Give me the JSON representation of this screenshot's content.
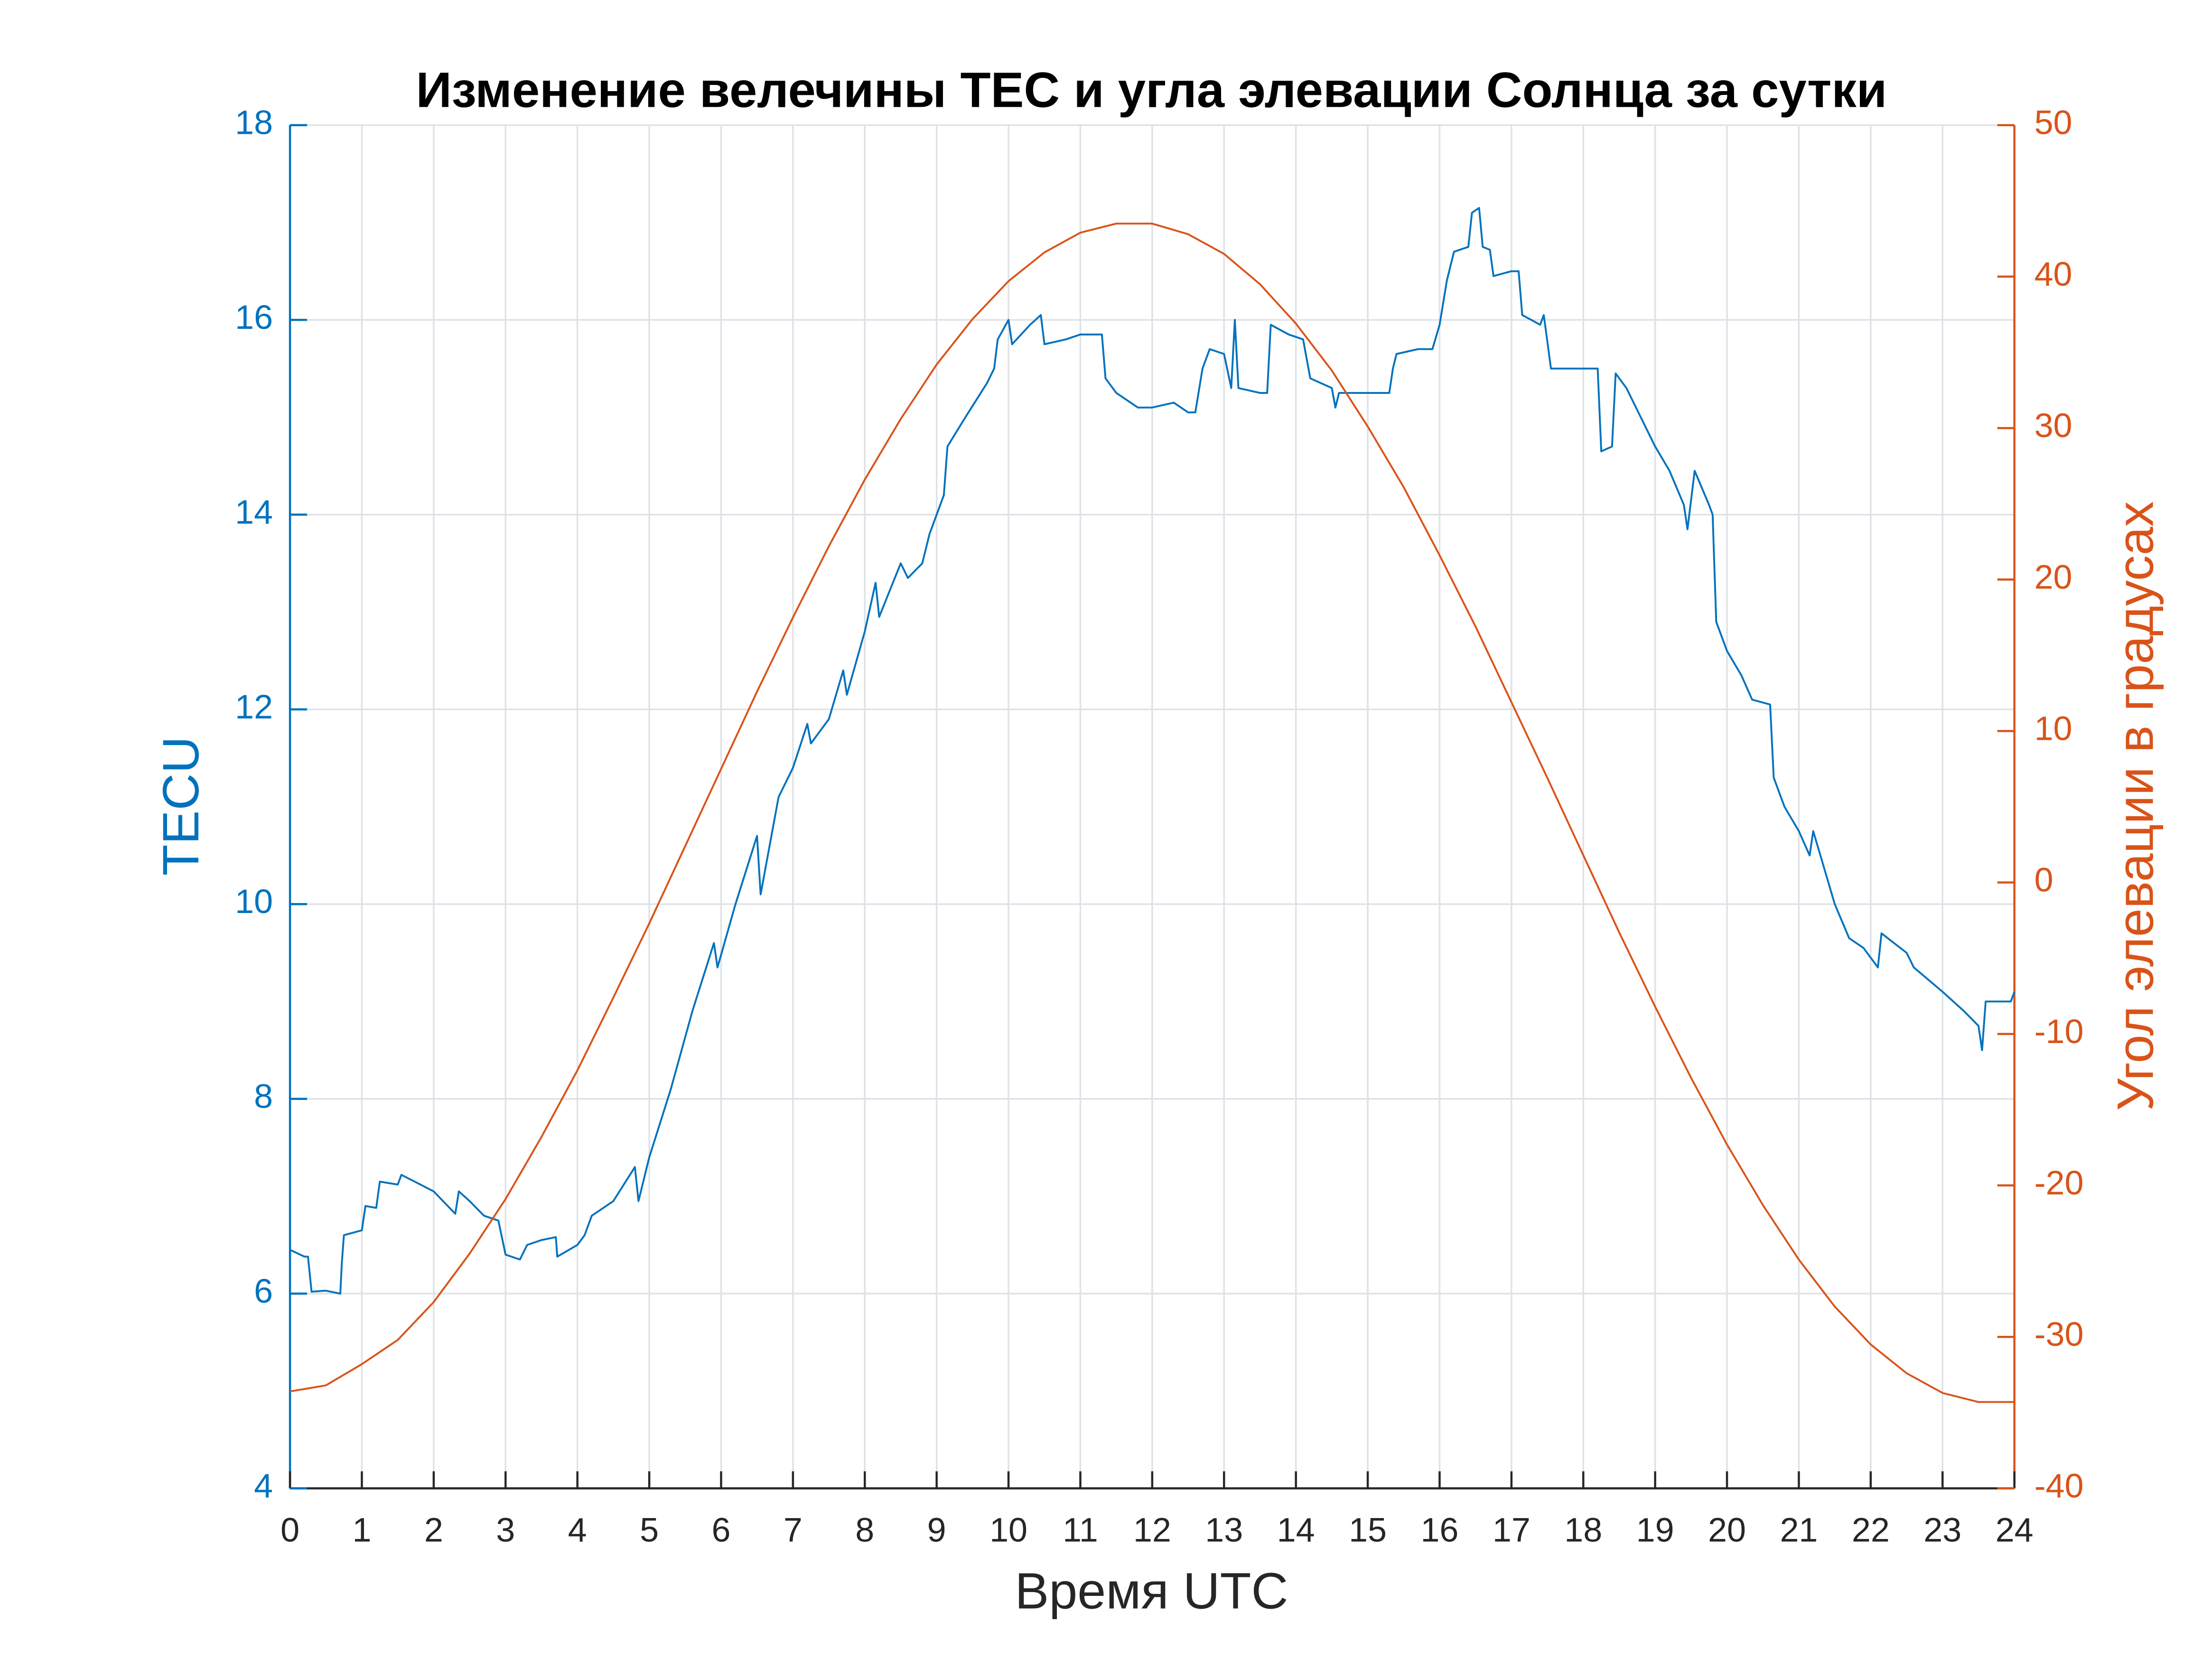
{
  "chart_data": {
    "type": "line",
    "title": "Изменение велечины TEC и угла элевации Солнца за сутки",
    "xlabel": "Время UTC",
    "ylabel": "TECU",
    "y2label": "Угол элевации в градусах",
    "xlim": [
      0,
      24
    ],
    "xticks": [
      0,
      1,
      2,
      3,
      4,
      5,
      6,
      7,
      8,
      9,
      10,
      11,
      12,
      13,
      14,
      15,
      16,
      17,
      18,
      19,
      20,
      21,
      22,
      23,
      24
    ],
    "ylim": [
      4,
      18
    ],
    "yticks": [
      4,
      6,
      8,
      10,
      12,
      14,
      16,
      18
    ],
    "y2lim": [
      -40,
      50
    ],
    "y2ticks": [
      -40,
      -30,
      -20,
      -10,
      0,
      10,
      20,
      30,
      40,
      50
    ],
    "grid": true,
    "series": [
      {
        "color": "#0072bd",
        "x": [
          0,
          0.2,
          0.25,
          0.3,
          0.5,
          0.7,
          0.72,
          0.75,
          1.0,
          1.05,
          1.2,
          1.25,
          1.5,
          1.55,
          2.0,
          2.3,
          2.35,
          2.5,
          2.7,
          2.9,
          3.0,
          3.2,
          3.3,
          3.5,
          3.7,
          3.72,
          4.0,
          4.1,
          4.2,
          4.5,
          4.8,
          4.85,
          5.0,
          5.3,
          5.6,
          5.9,
          5.95,
          6.2,
          6.5,
          6.55,
          6.7,
          6.8,
          7.0,
          7.2,
          7.25,
          7.5,
          7.7,
          7.75,
          8.0,
          8.15,
          8.2,
          8.5,
          8.6,
          8.8,
          8.9,
          9.1,
          9.15,
          9.4,
          9.7,
          9.8,
          9.85,
          10.0,
          10.05,
          10.3,
          10.45,
          10.5,
          10.8,
          11.0,
          11.3,
          11.35,
          11.5,
          11.8,
          12.0,
          12.3,
          12.5,
          12.6,
          12.7,
          12.8,
          13.0,
          13.1,
          13.15,
          13.2,
          13.5,
          13.6,
          13.65,
          13.9,
          14.1,
          14.2,
          14.5,
          14.55,
          14.6,
          15.0,
          15.3,
          15.35,
          15.4,
          15.7,
          15.9,
          16.0,
          16.1,
          16.2,
          16.4,
          16.45,
          16.55,
          16.6,
          16.7,
          16.75,
          17.0,
          17.1,
          17.15,
          17.4,
          17.45,
          17.55,
          17.8,
          18.0,
          18.2,
          18.25,
          18.4,
          18.45,
          18.6,
          18.8,
          19.0,
          19.2,
          19.4,
          19.45,
          19.5,
          19.55,
          19.75,
          19.8,
          19.85,
          20.0,
          20.2,
          20.35,
          20.6,
          20.65,
          20.8,
          21.0,
          21.15,
          21.2,
          21.5,
          21.7,
          21.9,
          22.0,
          22.1,
          22.15,
          22.5,
          22.6,
          23.0,
          23.3,
          23.5,
          23.55,
          23.6,
          23.95,
          24.0
        ],
        "values": [
          6.45,
          6.38,
          6.38,
          6.02,
          6.03,
          6.0,
          6.3,
          6.6,
          6.65,
          6.9,
          6.88,
          7.15,
          7.12,
          7.22,
          7.05,
          6.82,
          7.05,
          6.95,
          6.8,
          6.75,
          6.4,
          6.35,
          6.5,
          6.55,
          6.58,
          6.38,
          6.5,
          6.6,
          6.8,
          6.95,
          7.3,
          6.95,
          7.4,
          8.1,
          8.9,
          9.6,
          9.35,
          10.0,
          10.7,
          10.1,
          10.7,
          11.1,
          11.4,
          11.85,
          11.65,
          11.9,
          12.4,
          12.15,
          12.8,
          13.3,
          12.95,
          13.5,
          13.35,
          13.5,
          13.8,
          14.2,
          14.7,
          15.0,
          15.35,
          15.5,
          15.8,
          16.0,
          15.75,
          15.95,
          16.05,
          15.75,
          15.8,
          15.85,
          15.85,
          15.4,
          15.25,
          15.1,
          15.1,
          15.15,
          15.05,
          15.05,
          15.5,
          15.7,
          15.65,
          15.3,
          16.0,
          15.3,
          15.25,
          15.25,
          15.95,
          15.85,
          15.8,
          15.4,
          15.3,
          15.1,
          15.25,
          15.25,
          15.25,
          15.5,
          15.65,
          15.7,
          15.7,
          15.95,
          16.4,
          16.7,
          16.75,
          17.1,
          17.15,
          16.75,
          16.72,
          16.45,
          16.5,
          16.5,
          16.05,
          15.95,
          16.05,
          15.5,
          15.5,
          15.5,
          15.5,
          14.65,
          14.7,
          15.45,
          15.3,
          15.0,
          14.7,
          14.45,
          14.1,
          13.85,
          14.15,
          14.45,
          14.1,
          14.0,
          12.9,
          12.6,
          12.35,
          12.1,
          12.05,
          11.3,
          11.0,
          10.75,
          10.5,
          10.75,
          10.0,
          9.65,
          9.55,
          9.45,
          9.35,
          9.7,
          9.5,
          9.35,
          9.1,
          8.9,
          8.75,
          8.5,
          9.0,
          9.0,
          9.1
        ]
      },
      {
        "color": "#d95319",
        "axis": "y2",
        "x": [
          0,
          0.5,
          1,
          1.5,
          2,
          2.5,
          3,
          3.5,
          4,
          4.5,
          5,
          5.5,
          6,
          6.5,
          7,
          7.5,
          8,
          8.5,
          9,
          9.5,
          10,
          10.5,
          11,
          11.5,
          12,
          12.5,
          13,
          13.5,
          14,
          14.5,
          15,
          15.5,
          16,
          16.5,
          17,
          17.5,
          18,
          18.5,
          19,
          19.5,
          20,
          20.5,
          21,
          21.5,
          22,
          22.5,
          23,
          23.5,
          24
        ],
        "values": [
          -33.6,
          -33.2,
          -31.8,
          -30.2,
          -27.7,
          -24.5,
          -20.9,
          -16.8,
          -12.4,
          -7.6,
          -2.7,
          2.4,
          7.5,
          12.6,
          17.5,
          22.2,
          26.6,
          30.6,
          34.2,
          37.2,
          39.7,
          41.6,
          42.9,
          43.5,
          43.5,
          42.8,
          41.5,
          39.5,
          36.9,
          33.8,
          30.1,
          26.1,
          21.6,
          16.9,
          11.9,
          6.9,
          1.8,
          -3.3,
          -8.2,
          -12.9,
          -17.3,
          -21.3,
          -24.9,
          -28.0,
          -30.5,
          -32.4,
          -33.7,
          -34.3,
          -34.3
        ]
      }
    ]
  }
}
